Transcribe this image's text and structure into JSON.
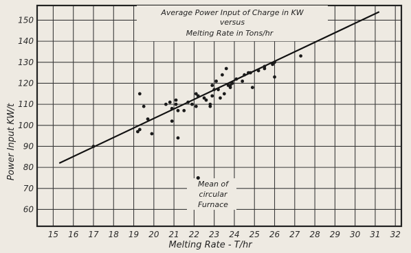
{
  "chart_data": {
    "type": "scatter",
    "title_lines": [
      "Average Power Input of Charge in KW",
      "versus",
      "Melting Rate in Tons/hr"
    ],
    "xlabel": "Melting Rate - T/hr",
    "ylabel": "Power Input  KW/t",
    "x_ticks": [
      15,
      16,
      17,
      18,
      19,
      20,
      21,
      22,
      23,
      24,
      25,
      26,
      27,
      28,
      29,
      30,
      31,
      32
    ],
    "y_ticks": [
      60,
      70,
      80,
      90,
      100,
      110,
      120,
      130,
      140,
      150
    ],
    "xlim": [
      14.2,
      32.3
    ],
    "ylim": [
      52,
      157
    ],
    "grid": true,
    "annotation": {
      "lines": [
        "Mean of",
        "circular",
        "Furnace"
      ],
      "point": {
        "x": 22.2,
        "y": 75
      }
    },
    "series": [
      {
        "type": "line",
        "x": [
          15.3,
          31.2
        ],
        "y": [
          82,
          154
        ]
      },
      {
        "type": "scatter",
        "x": [
          17.0,
          19.2,
          19.3,
          19.3,
          19.5,
          19.7,
          19.9,
          20.6,
          20.8,
          20.9,
          20.9,
          21.1,
          21.1,
          21.2,
          21.2,
          21.5,
          21.7,
          21.9,
          22.1,
          22.1,
          22.2,
          22.5,
          22.6,
          22.8,
          22.8,
          22.9,
          22.9,
          23.0,
          23.1,
          23.2,
          23.3,
          23.4,
          23.5,
          23.6,
          23.7,
          23.8,
          23.8,
          23.9,
          24.1,
          24.4,
          24.5,
          24.7,
          24.8,
          24.9,
          25.2,
          25.5,
          25.5,
          25.9,
          26.0,
          26.0,
          27.3
        ],
        "y": [
          90,
          97,
          98,
          115,
          109,
          103,
          96,
          110,
          111,
          102,
          108,
          110,
          112,
          94,
          107,
          107,
          111,
          110,
          115,
          109,
          114,
          113,
          112,
          109,
          110,
          119,
          114,
          117,
          121,
          117,
          113,
          124,
          115,
          127,
          119,
          118,
          119,
          120,
          122,
          121,
          124,
          125,
          125,
          118,
          126,
          127,
          128,
          129,
          130,
          123,
          133
        ]
      }
    ]
  }
}
